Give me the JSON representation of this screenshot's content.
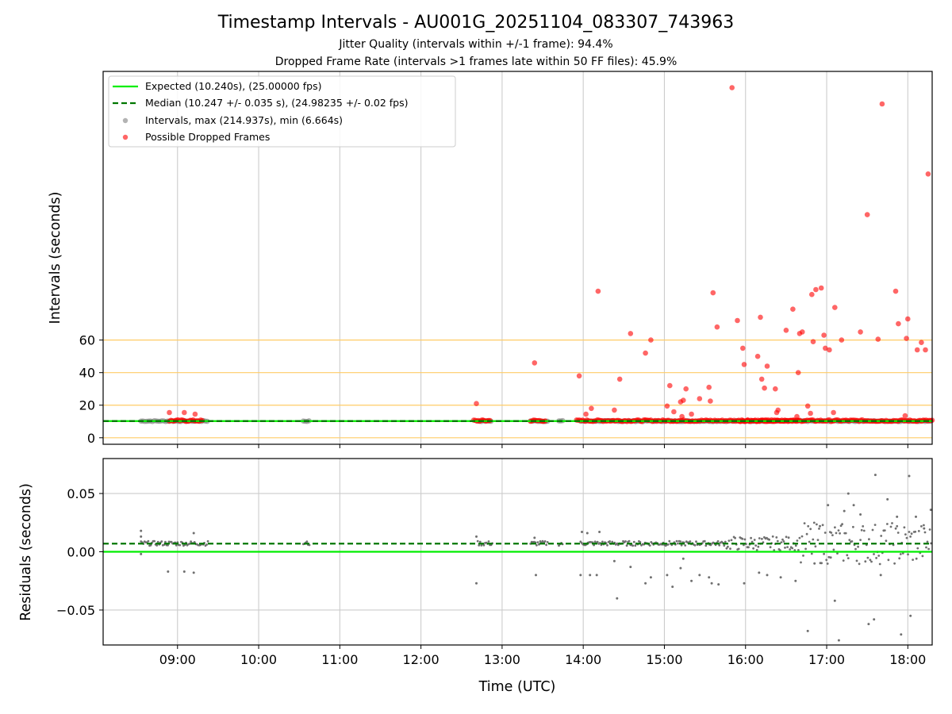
{
  "title": "Timestamp Intervals - AU001G_20251104_083307_743963",
  "subtitle_jitter": "Jitter Quality (intervals within +/-1 frame): 94.4%",
  "subtitle_dropped": "Dropped Frame Rate (intervals >1 frames late within 50 FF files): 45.9%",
  "colors": {
    "expected": "#00ee00",
    "median": "#007700",
    "intervals": "#808080",
    "dropped": "#ff0000",
    "threshold": "#ffcc66",
    "grid": "#cccccc"
  },
  "chart_data": [
    {
      "type": "scatter",
      "panel": "top",
      "xlabel": "",
      "ylabel": "Intervals (seconds)",
      "xlim": [
        "08:05",
        "18:18"
      ],
      "ylim": [
        -4,
        225
      ],
      "yticks": [
        0,
        20,
        40,
        60
      ],
      "ytick_labels": [
        "0",
        "20",
        "40",
        "60"
      ],
      "threshold_lines": [
        0,
        10,
        20,
        40,
        60
      ],
      "grid": "x only",
      "legend_position": "upper-left",
      "legend": [
        "Expected (10.240s), (25.00000 fps)",
        "Median (10.247 +/- 0.035 s), (24.98235 +/- 0.02 fps)",
        "Intervals, max (214.937s), min (6.664s)",
        "Possible Dropped Frames"
      ],
      "expected_interval": 10.24,
      "median_interval": 10.247,
      "series": [
        {
          "name": "Possible Dropped Frames",
          "points": [
            [
              "08:54",
              15.5
            ],
            [
              "09:05",
              15.5
            ],
            [
              "09:13",
              14.5
            ],
            [
              "12:41",
              21
            ],
            [
              "13:24",
              46
            ],
            [
              "13:57",
              38
            ],
            [
              "14:02",
              14.5
            ],
            [
              "14:06",
              18
            ],
            [
              "14:11",
              90
            ],
            [
              "14:23",
              17
            ],
            [
              "14:27",
              36
            ],
            [
              "14:35",
              64
            ],
            [
              "14:46",
              52
            ],
            [
              "14:50",
              60
            ],
            [
              "15:02",
              19.5
            ],
            [
              "15:04",
              32
            ],
            [
              "15:07",
              16
            ],
            [
              "15:12",
              22
            ],
            [
              "15:13",
              13
            ],
            [
              "15:14",
              23
            ],
            [
              "15:16",
              30
            ],
            [
              "15:20",
              14.5
            ],
            [
              "15:26",
              24
            ],
            [
              "15:33",
              31
            ],
            [
              "15:34",
              22.5
            ],
            [
              "15:36",
              89
            ],
            [
              "15:39",
              68
            ],
            [
              "15:50",
              215
            ],
            [
              "15:54",
              72
            ],
            [
              "15:58",
              55
            ],
            [
              "15:59",
              45
            ],
            [
              "16:09",
              50
            ],
            [
              "16:11",
              74
            ],
            [
              "16:12",
              36
            ],
            [
              "16:14",
              30.5
            ],
            [
              "16:16",
              44
            ],
            [
              "16:22",
              30
            ],
            [
              "16:23",
              15.5
            ],
            [
              "16:24",
              17
            ],
            [
              "16:30",
              66
            ],
            [
              "16:35",
              79
            ],
            [
              "16:38",
              13
            ],
            [
              "16:39",
              40
            ],
            [
              "16:40",
              64
            ],
            [
              "16:42",
              65
            ],
            [
              "16:46",
              19.5
            ],
            [
              "16:48",
              15
            ],
            [
              "16:49",
              88
            ],
            [
              "16:50",
              59
            ],
            [
              "16:52",
              91
            ],
            [
              "16:56",
              92
            ],
            [
              "16:58",
              63
            ],
            [
              "16:59",
              55
            ],
            [
              "17:02",
              54
            ],
            [
              "17:05",
              15.5
            ],
            [
              "17:06",
              80
            ],
            [
              "17:11",
              60
            ],
            [
              "17:25",
              65
            ],
            [
              "17:30",
              137
            ],
            [
              "17:38",
              60.5
            ],
            [
              "17:41",
              205
            ],
            [
              "17:51",
              90
            ],
            [
              "17:53",
              70
            ],
            [
              "17:58",
              13.5
            ],
            [
              "17:59",
              61
            ],
            [
              "18:00",
              73
            ],
            [
              "18:07",
              54
            ],
            [
              "18:10",
              58.5
            ],
            [
              "18:13",
              54
            ],
            [
              "18:15",
              162
            ]
          ]
        }
      ]
    },
    {
      "type": "scatter",
      "panel": "bottom",
      "xlabel": "Time (UTC)",
      "ylabel": "Residuals (seconds)",
      "xlim": [
        "08:05",
        "18:18"
      ],
      "ylim": [
        -0.08,
        0.08
      ],
      "yticks": [
        -0.05,
        0.0,
        0.05
      ],
      "ytick_labels": [
        "−0.05",
        "0.00",
        "0.05"
      ],
      "xticks": [
        "09:00",
        "10:00",
        "11:00",
        "12:00",
        "13:00",
        "14:00",
        "15:00",
        "16:00",
        "17:00",
        "18:00"
      ],
      "grid": "on",
      "expected_residual": 0.0,
      "median_residual": 0.007,
      "series": [
        {
          "name": "Residual outliers",
          "points": [
            [
              "08:33",
              0.018
            ],
            [
              "08:33",
              0.013
            ],
            [
              "08:33",
              -0.002
            ],
            [
              "08:53",
              -0.017
            ],
            [
              "09:05",
              -0.017
            ],
            [
              "09:12",
              -0.018
            ],
            [
              "09:12",
              0.016
            ],
            [
              "12:41",
              -0.027
            ],
            [
              "12:41",
              0.013
            ],
            [
              "13:25",
              -0.02
            ],
            [
              "13:24",
              0.012
            ],
            [
              "13:58",
              -0.02
            ],
            [
              "13:59",
              0.017
            ],
            [
              "14:03",
              0.016
            ],
            [
              "14:05",
              -0.02
            ],
            [
              "14:10",
              -0.02
            ],
            [
              "14:12",
              0.017
            ],
            [
              "14:23",
              -0.008
            ],
            [
              "14:25",
              -0.04
            ],
            [
              "14:35",
              -0.013
            ],
            [
              "14:46",
              -0.027
            ],
            [
              "14:50",
              -0.022
            ],
            [
              "15:02",
              -0.02
            ],
            [
              "15:06",
              -0.03
            ],
            [
              "15:12",
              -0.014
            ],
            [
              "15:14",
              -0.006
            ],
            [
              "15:20",
              -0.025
            ],
            [
              "15:26",
              -0.02
            ],
            [
              "15:33",
              -0.022
            ],
            [
              "15:35",
              -0.027
            ],
            [
              "15:40",
              -0.028
            ],
            [
              "15:59",
              -0.027
            ],
            [
              "16:10",
              -0.018
            ],
            [
              "16:16",
              -0.02
            ],
            [
              "16:26",
              -0.022
            ],
            [
              "16:37",
              -0.025
            ],
            [
              "16:46",
              -0.068
            ],
            [
              "16:51",
              -0.01
            ],
            [
              "16:55",
              0.022
            ],
            [
              "17:01",
              0.04
            ],
            [
              "17:03",
              -0.005
            ],
            [
              "17:06",
              -0.042
            ],
            [
              "17:09",
              -0.076
            ],
            [
              "17:13",
              0.035
            ],
            [
              "17:16",
              0.05
            ],
            [
              "17:20",
              0.04
            ],
            [
              "17:25",
              0.032
            ],
            [
              "17:31",
              -0.062
            ],
            [
              "17:35",
              -0.058
            ],
            [
              "17:36",
              0.066
            ],
            [
              "17:40",
              -0.02
            ],
            [
              "17:45",
              0.045
            ],
            [
              "17:52",
              0.03
            ],
            [
              "17:55",
              -0.071
            ],
            [
              "18:01",
              0.065
            ],
            [
              "18:02",
              -0.055
            ],
            [
              "18:06",
              0.03
            ],
            [
              "18:12",
              0.02
            ],
            [
              "18:17",
              0.036
            ]
          ]
        }
      ]
    }
  ]
}
